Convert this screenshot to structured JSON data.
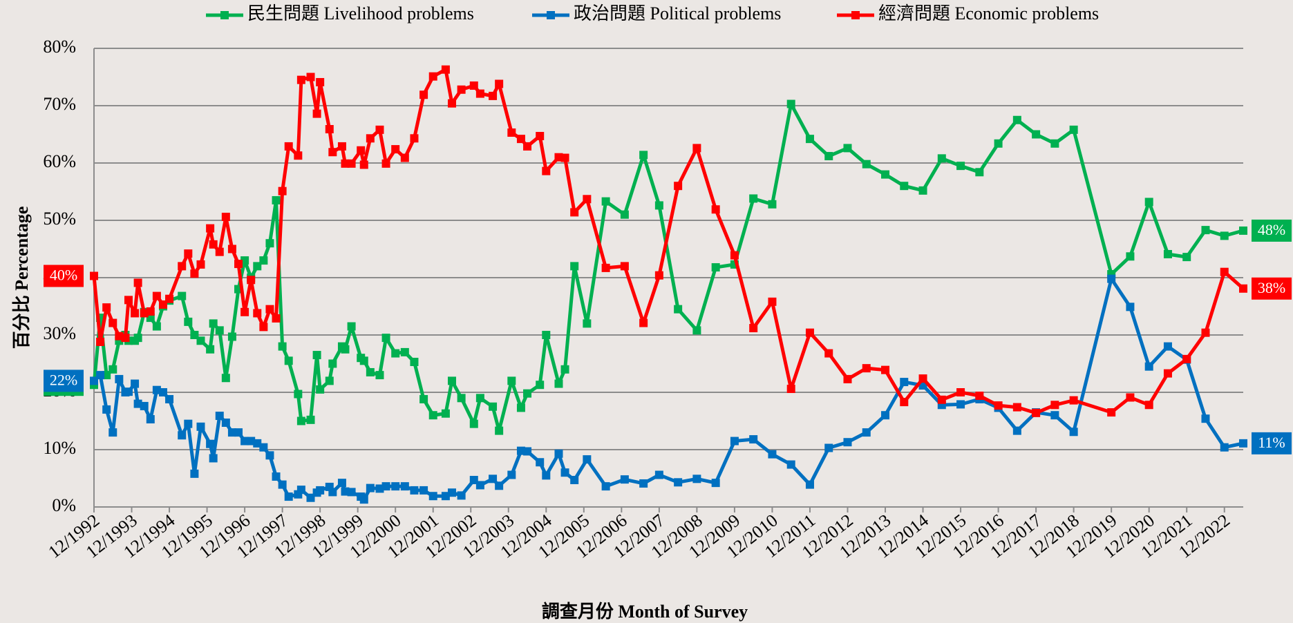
{
  "chart_data": {
    "type": "line",
    "y_label": "百分比 Percentage",
    "x_label": "調查月份 Month of Survey",
    "x": [
      "12/1992",
      "2/1993",
      "4/1993",
      "6/1993",
      "8/1993",
      "10/1993",
      "11/1993",
      "1/1994",
      "2/1994",
      "4/1994",
      "6/1994",
      "8/1994",
      "10/1994",
      "12/1994",
      "4/1995",
      "6/1995",
      "8/1995",
      "10/1995",
      "1/1996",
      "2/1996",
      "4/1996",
      "6/1996",
      "8/1996",
      "10/1996",
      "12/1996",
      "2/1997",
      "4/1997",
      "6/1997",
      "8/1997",
      "10/1997",
      "12/1997",
      "2/1998",
      "5/1998",
      "6/1998",
      "9/1998",
      "11/1998",
      "12/1998",
      "3/1999",
      "4/1999",
      "7/1999",
      "8/1999",
      "10/1999",
      "1/2000",
      "2/2000",
      "4/2000",
      "7/2000",
      "9/2000",
      "12/2000",
      "3/2001",
      "6/2001",
      "9/2001",
      "12/2001",
      "4/2002",
      "6/2002",
      "9/2002",
      "1/2003",
      "3/2003",
      "7/2003",
      "9/2003",
      "1/2004",
      "4/2004",
      "6/2004",
      "10/2004",
      "12/2004",
      "4/2005",
      "6/2005",
      "9/2005",
      "1/2006",
      "7/2006",
      "1/2007",
      "7/2007",
      "12/2007",
      "6/2008",
      "12/2008",
      "6/2009",
      "12/2009",
      "6/2010",
      "12/2010",
      "6/2011",
      "12/2011",
      "6/2012",
      "12/2012",
      "6/2013",
      "12/2013",
      "6/2014",
      "12/2014",
      "6/2015",
      "12/2015",
      "6/2016",
      "12/2016",
      "6/2017",
      "12/2017",
      "6/2018",
      "12/2018",
      "12/2019",
      "6/2020",
      "12/2020",
      "6/2021",
      "12/2021",
      "6/2022",
      "12/2022",
      "6/2023"
    ],
    "xlim": [
      "12/1992",
      "6/2023"
    ],
    "xticks": [
      "12/1992",
      "12/1993",
      "12/1994",
      "12/1995",
      "12/1996",
      "12/1997",
      "12/1998",
      "12/1999",
      "12/2000",
      "12/2001",
      "12/2002",
      "12/2003",
      "12/2004",
      "12/2005",
      "12/2006",
      "12/2007",
      "12/2008",
      "12/2009",
      "12/2010",
      "12/2011",
      "12/2012",
      "12/2013",
      "12/2014",
      "12/2015",
      "12/2016",
      "12/2017",
      "12/2018",
      "12/2019",
      "12/2020",
      "12/2021",
      "12/2022"
    ],
    "ylim": [
      0,
      80
    ],
    "yticks": [
      {
        "value": 0,
        "label": "0%"
      },
      {
        "value": 10,
        "label": "10%"
      },
      {
        "value": 20,
        "label": "20%"
      },
      {
        "value": 30,
        "label": "30%"
      },
      {
        "value": 40,
        "label": "40%"
      },
      {
        "value": 50,
        "label": "50%"
      },
      {
        "value": 60,
        "label": "60%"
      },
      {
        "value": 70,
        "label": "70%"
      },
      {
        "value": 80,
        "label": "80%"
      }
    ],
    "grid": true,
    "legend": "top",
    "series": [
      {
        "name": "民生問題 Livelihood problems",
        "color": "#00b050",
        "values": [
          21.3,
          33,
          23,
          24,
          29,
          30,
          29,
          29,
          29.5,
          34,
          33,
          31.5,
          35,
          36,
          36.8,
          32.3,
          30,
          29,
          27.5,
          32,
          30.8,
          22.5,
          29.7,
          38,
          43,
          40,
          42,
          43,
          46,
          53.5,
          28,
          25.5,
          19.7,
          15,
          15.2,
          26.5,
          20.5,
          22,
          25,
          28,
          27.5,
          31.5,
          26,
          25.5,
          23.5,
          23,
          29.5,
          26.8,
          27,
          25.3,
          18.8,
          16,
          16.3,
          22,
          19,
          14.5,
          19,
          17.5,
          13.3,
          22,
          17.3,
          19.8,
          21.3,
          30,
          21.5,
          24,
          42,
          32,
          53.3,
          51,
          61.4,
          52.6,
          34.5,
          30.8,
          41.8,
          42.3,
          53.8,
          52.8,
          70.3,
          64.2,
          61.2,
          62.6,
          59.8,
          58,
          56,
          55.2,
          60.8,
          59.5,
          58.4,
          63.4,
          67.5,
          65,
          63.4,
          65.8,
          40.6,
          43.7,
          53.2,
          44.1,
          43.6,
          48.3,
          47.3,
          48.2
        ],
        "value_labels": {
          "0": "21%",
          "101": "48%"
        }
      },
      {
        "name": "政治問題 Political problems",
        "color": "#0070c0",
        "values": [
          22,
          23,
          17,
          13,
          22.3,
          20,
          20.1,
          21.5,
          18,
          17.6,
          15.3,
          20.4,
          20,
          18.8,
          12.5,
          14.5,
          5.8,
          14,
          11,
          8.5,
          15.9,
          14.7,
          13,
          13,
          11.5,
          11.5,
          11.1,
          10.4,
          9,
          5.3,
          3.9,
          1.8,
          2.2,
          3,
          1.6,
          2.5,
          2.9,
          3.5,
          2.6,
          4.2,
          2.7,
          2.6,
          1.8,
          1.3,
          3.3,
          3.2,
          3.6,
          3.6,
          3.6,
          2.9,
          2.9,
          1.9,
          1.9,
          2.5,
          2,
          4.7,
          3.8,
          4.9,
          3.7,
          5.6,
          9.8,
          9.7,
          7.8,
          5.5,
          9.3,
          6,
          4.7,
          8.3,
          3.6,
          4.8,
          4.1,
          5.6,
          4.3,
          4.9,
          4.2,
          11.5,
          11.8,
          9.2,
          7.4,
          3.9,
          10.3,
          11.3,
          13,
          16,
          21.8,
          21.2,
          17.8,
          17.9,
          18.8,
          17.3,
          13.3,
          16.5,
          16,
          13.1,
          39.8,
          34.9,
          24.5,
          28,
          25.7,
          15.4,
          10.4,
          11.1
        ],
        "value_labels": {
          "0": "22%",
          "101": "11%"
        }
      },
      {
        "name": "經濟問題 Economic problems",
        "color": "#ff0000",
        "values": [
          40.3,
          28.8,
          34.8,
          32.1,
          29.8,
          29.5,
          36.1,
          33.8,
          39.1,
          33.8,
          34.1,
          36.8,
          35.3,
          36.3,
          42.0,
          44.2,
          40.7,
          42.3,
          48.6,
          45.8,
          44.5,
          50.6,
          45.0,
          42.4,
          34.0,
          39.6,
          33.8,
          31.4,
          34.5,
          32.9,
          55.1,
          62.9,
          61.3,
          74.5,
          75.0,
          68.6,
          74.1,
          65.9,
          61.9,
          62.9,
          59.9,
          59.9,
          62.2,
          59.7,
          64.3,
          65.8,
          59.9,
          62.4,
          60.9,
          64.3,
          71.9,
          75.1,
          76.3,
          70.4,
          72.8,
          73.5,
          72.1,
          71.7,
          73.8,
          65.3,
          64.2,
          62.9,
          64.7,
          58.6,
          61.0,
          60.9,
          51.4,
          53.7,
          41.7,
          42.0,
          32.1,
          40.4,
          56.0,
          62.6,
          51.9,
          43.9,
          31.2,
          35.8,
          20.6,
          30.4,
          26.8,
          22.3,
          24.2,
          23.9,
          18.3,
          22.4,
          18.7,
          20.0,
          19.4,
          17.7,
          17.4,
          16.4,
          17.8,
          18.6,
          16.5,
          19.1,
          17.8,
          23.3,
          25.8,
          30.4,
          41.0,
          38.1
        ],
        "value_labels": {
          "0": "40%",
          "101": "38%"
        }
      }
    ]
  }
}
